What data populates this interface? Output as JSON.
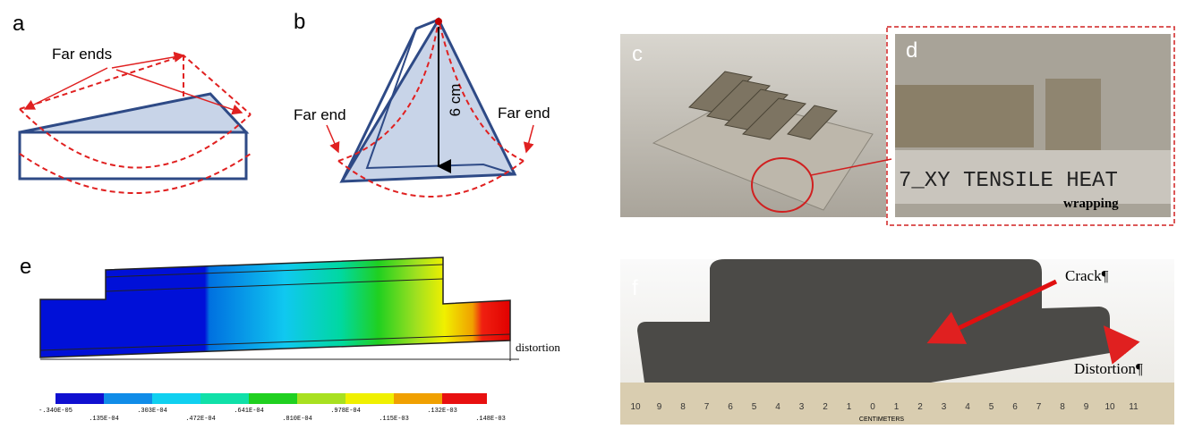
{
  "panels": {
    "a": {
      "label": "a",
      "annotation": "Far ends"
    },
    "b": {
      "label": "b",
      "height_label": "6 cm",
      "left_annotation": "Far end",
      "right_annotation": "Far end"
    },
    "c": {
      "label": "c"
    },
    "d": {
      "label": "d",
      "photo_text": "7_XY TENSILE HEAT",
      "annotation": "wrapping"
    },
    "e": {
      "label": "e",
      "annotation": "distortion",
      "colorbar_labels": [
        "-.340E-05",
        ".135E-04",
        ".303E-04",
        ".472E-04",
        ".641E-04",
        ".810E-04",
        ".978E-04",
        ".115E-03",
        ".132E-03",
        ".148E-03"
      ]
    },
    "f": {
      "label": "f",
      "crack_annotation": "Crack¶",
      "distortion_annotation": "Distortion¶",
      "ruler_unit": "CENTIMETERS",
      "ruler_numbers": [
        "10",
        "9",
        "8",
        "7",
        "6",
        "5",
        "4",
        "3",
        "2",
        "1",
        "0",
        "1",
        "2",
        "3",
        "4",
        "5",
        "6",
        "7",
        "8",
        "9",
        "10",
        "11"
      ]
    }
  }
}
